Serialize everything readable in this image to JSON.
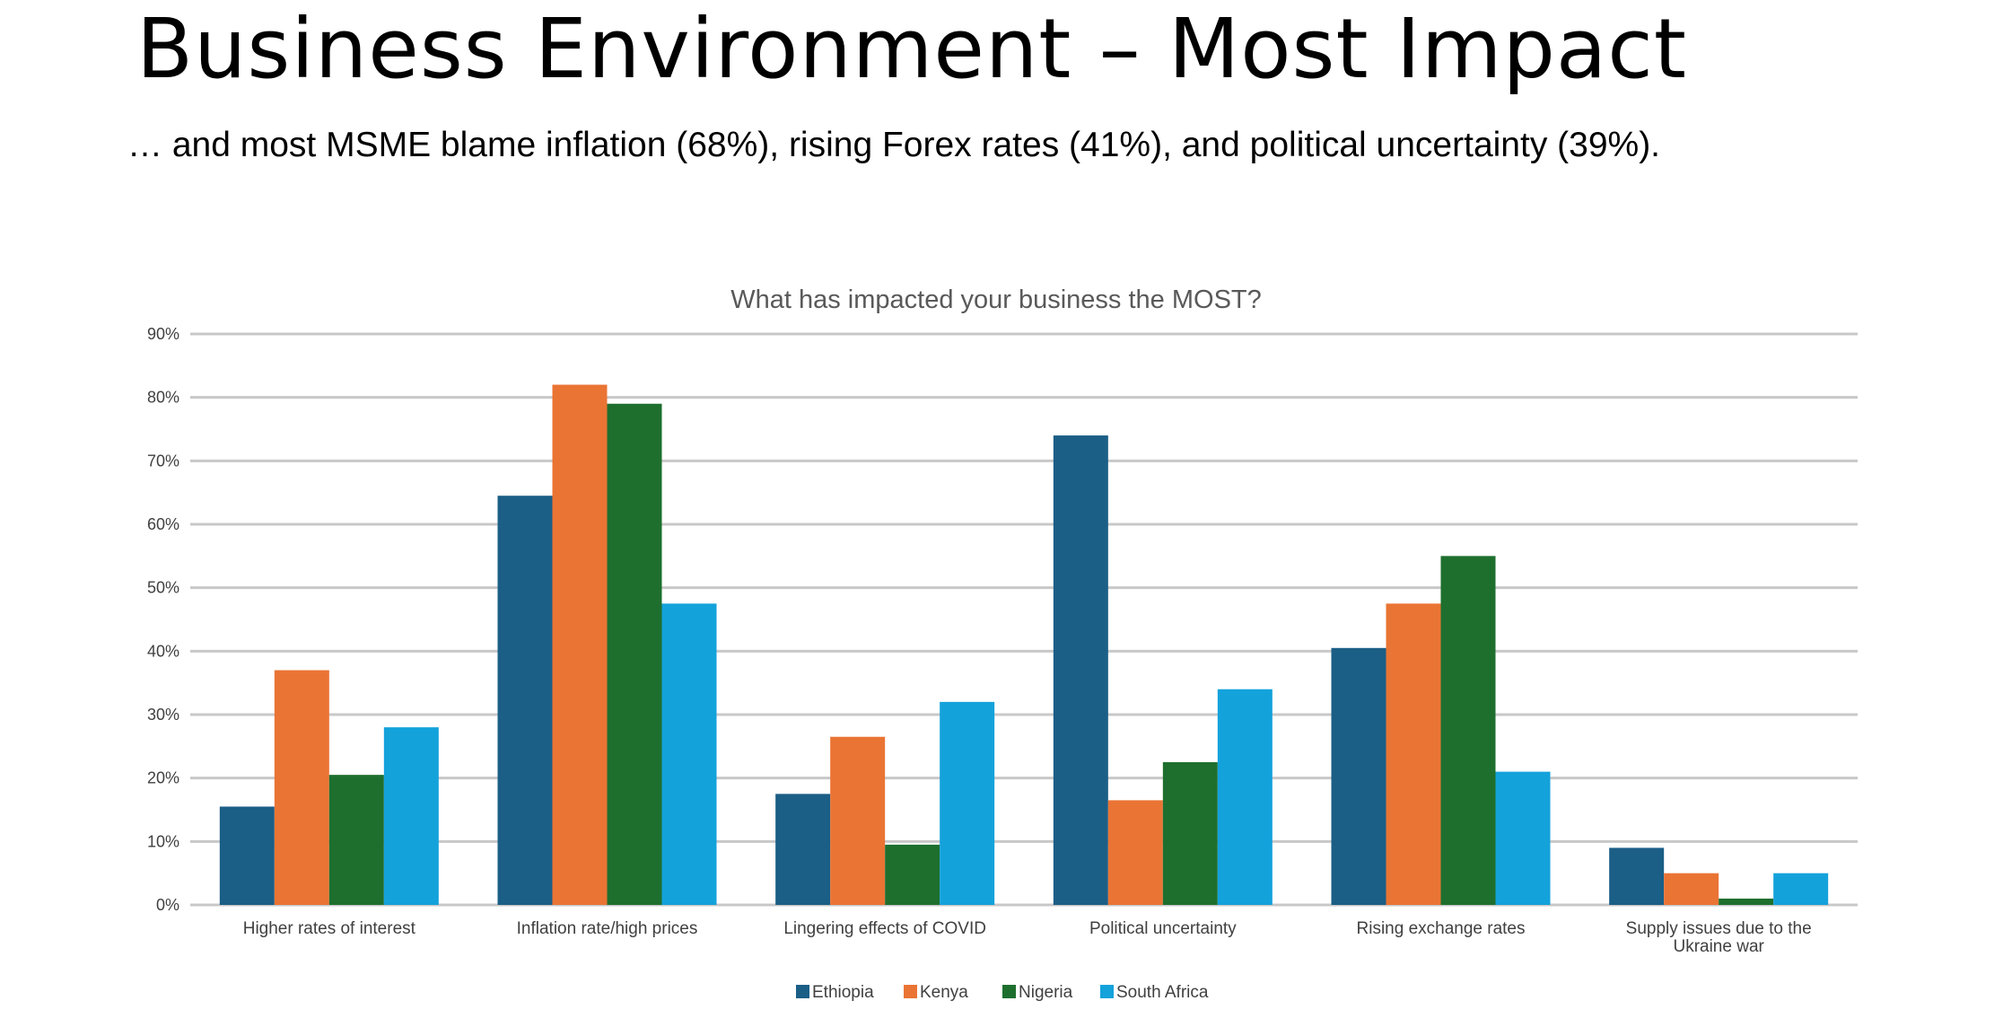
{
  "slide": {
    "title": "Business Environment – Most Impact",
    "subtitle": "… and most MSME blame inflation (68%), rising Forex rates (41%), and political uncertainty (39%)."
  },
  "chart_data": {
    "type": "bar",
    "title": "What has impacted your business the MOST?",
    "xlabel": "",
    "ylabel": "",
    "ylim": [
      0,
      90
    ],
    "yticks": [
      "0%",
      "10%",
      "20%",
      "30%",
      "40%",
      "50%",
      "60%",
      "70%",
      "80%",
      "90%"
    ],
    "grid": true,
    "legend_position": "bottom",
    "categories": [
      [
        "Higher rates of interest"
      ],
      [
        "Inflation rate/high prices"
      ],
      [
        "Lingering effects of COVID"
      ],
      [
        "Political uncertainty"
      ],
      [
        "Rising exchange rates"
      ],
      [
        "Supply issues due to the",
        "Ukraine war"
      ]
    ],
    "series": [
      {
        "name": "Ethiopia",
        "color": "#1b5e86",
        "values": [
          15.5,
          64.5,
          17.5,
          74,
          40.5,
          9
        ]
      },
      {
        "name": "Kenya",
        "color": "#ea7434",
        "values": [
          37,
          82,
          26.5,
          16.5,
          47.5,
          5
        ]
      },
      {
        "name": "Nigeria",
        "color": "#1e6f2e",
        "values": [
          20.5,
          79,
          9.5,
          22.5,
          55,
          1
        ]
      },
      {
        "name": "South Africa",
        "color": "#14a2db",
        "values": [
          28,
          47.5,
          32,
          34,
          21,
          5
        ]
      }
    ]
  }
}
